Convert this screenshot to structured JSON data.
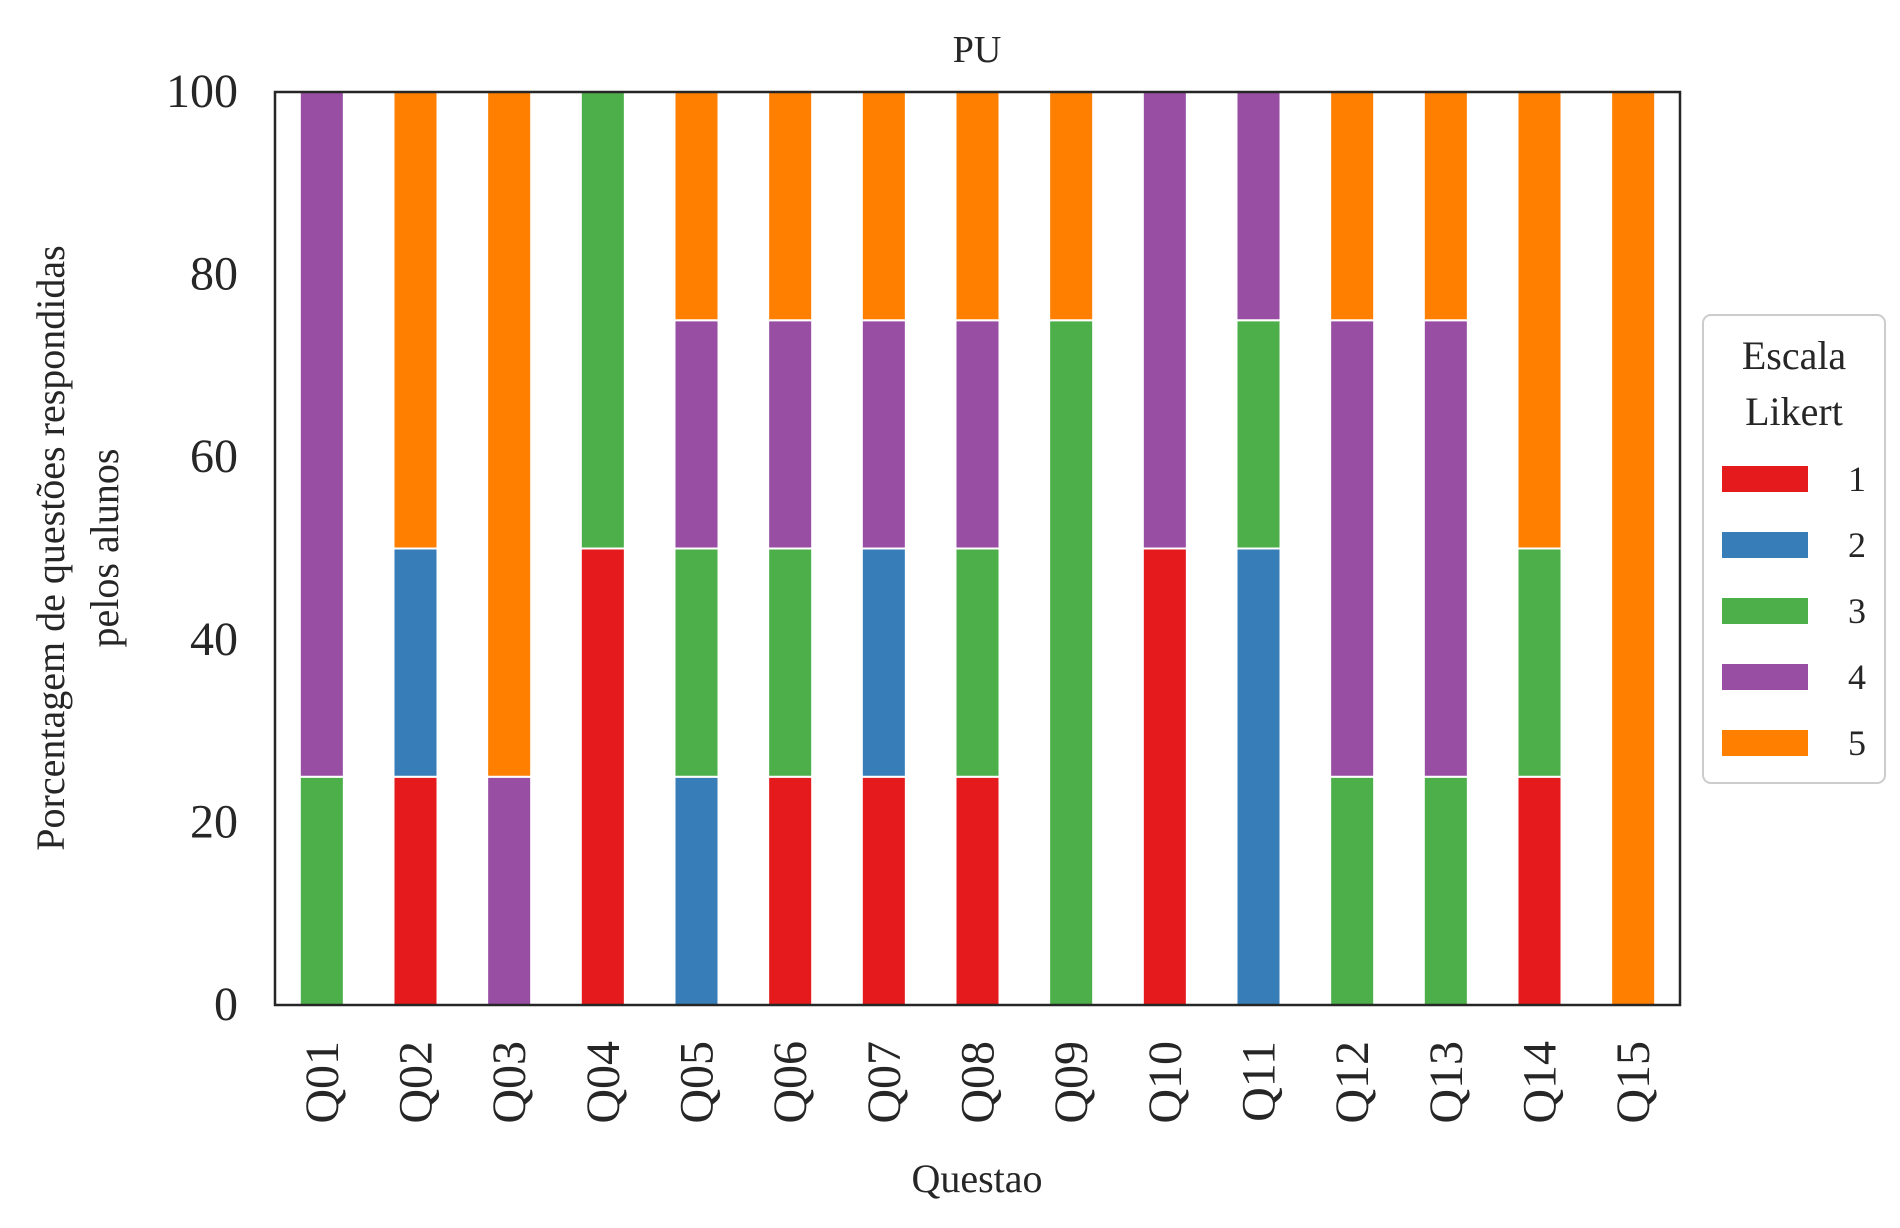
{
  "chart_data": {
    "type": "bar",
    "stacked": true,
    "title": "PU",
    "xlabel": "Questao",
    "ylabel_lines": [
      "Porcentagem de questões respondidas",
      "pelos alunos"
    ],
    "ylim": [
      0,
      100
    ],
    "yticks": [
      "0",
      "20",
      "40",
      "60",
      "80",
      "100"
    ],
    "grid": false,
    "categories": [
      "Q01",
      "Q02",
      "Q03",
      "Q04",
      "Q05",
      "Q06",
      "Q07",
      "Q08",
      "Q09",
      "Q10",
      "Q11",
      "Q12",
      "Q13",
      "Q14",
      "Q15"
    ],
    "legend": {
      "title_lines": [
        "Escala",
        "Likert"
      ],
      "placement": "right-center"
    },
    "series": [
      {
        "name": "1",
        "color": "#e41a1c",
        "values": [
          0,
          25,
          0,
          50,
          0,
          25,
          25,
          25,
          0,
          50,
          0,
          0,
          0,
          25,
          0
        ]
      },
      {
        "name": "2",
        "color": "#377eb8",
        "values": [
          0,
          25,
          0,
          0,
          25,
          0,
          25,
          0,
          0,
          0,
          50,
          0,
          0,
          0,
          0
        ]
      },
      {
        "name": "3",
        "color": "#4daf4a",
        "values": [
          25,
          0,
          0,
          50,
          25,
          25,
          0,
          25,
          75,
          0,
          25,
          25,
          25,
          25,
          0
        ]
      },
      {
        "name": "4",
        "color": "#984ea3",
        "values": [
          75,
          0,
          25,
          0,
          25,
          25,
          25,
          25,
          0,
          50,
          25,
          50,
          50,
          0,
          0
        ]
      },
      {
        "name": "5",
        "color": "#ff7f00",
        "values": [
          0,
          50,
          75,
          0,
          25,
          25,
          25,
          25,
          25,
          0,
          0,
          25,
          25,
          50,
          100
        ]
      }
    ]
  }
}
